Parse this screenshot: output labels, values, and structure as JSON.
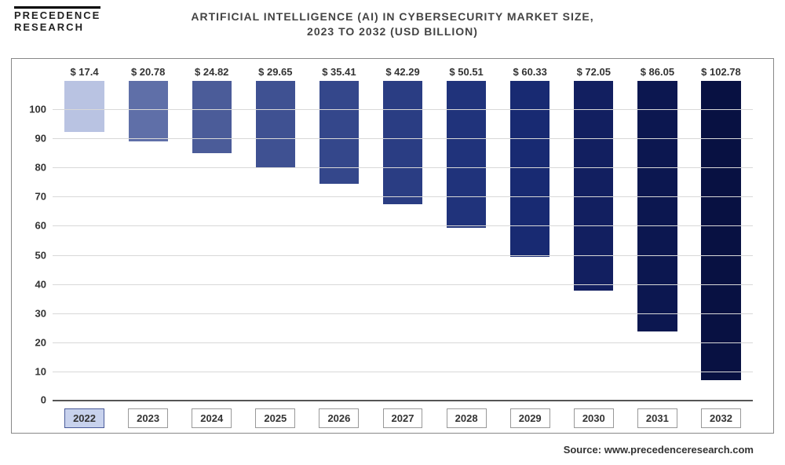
{
  "logo": {
    "line1": "PRECEDENCE",
    "line2": "RESEARCH"
  },
  "title": {
    "line1": "ARTIFICIAL INTELLIGENCE (AI) IN CYBERSECURITY MARKET  SIZE,",
    "line2": "2023 TO 2032 (USD BILLION)",
    "fontsize": 14,
    "color": "#444444"
  },
  "chart": {
    "type": "bar",
    "ylim": [
      0,
      110
    ],
    "yticks": [
      0,
      10,
      20,
      30,
      40,
      50,
      60,
      70,
      80,
      90,
      100
    ],
    "ytick_fontsize": 13,
    "grid_color": "#d8d8d8",
    "baseline_color": "#555555",
    "background_color": "#ffffff",
    "bar_width": 0.62,
    "value_prefix": "$ ",
    "label_fontsize": 13,
    "label_color": "#333333",
    "categories": [
      "2022",
      "2023",
      "2024",
      "2025",
      "2026",
      "2027",
      "2028",
      "2029",
      "2030",
      "2031",
      "2032"
    ],
    "values": [
      17.4,
      20.78,
      24.82,
      29.65,
      35.41,
      42.29,
      50.51,
      60.33,
      72.05,
      86.05,
      102.78
    ],
    "bar_colors": [
      "#b9c3e2",
      "#5f6fa8",
      "#4b5c99",
      "#3f5192",
      "#34478b",
      "#2a3d83",
      "#20337b",
      "#182a72",
      "#121f60",
      "#0c1750",
      "#081142"
    ],
    "highlight_category": "2022",
    "xtick_box_border": "#999999",
    "xtick_highlight_bg": "#c8d2ed",
    "xtick_highlight_border": "#4a5b9a"
  },
  "source": {
    "label": "Source:",
    "value": "www.precedenceresearch.com"
  }
}
